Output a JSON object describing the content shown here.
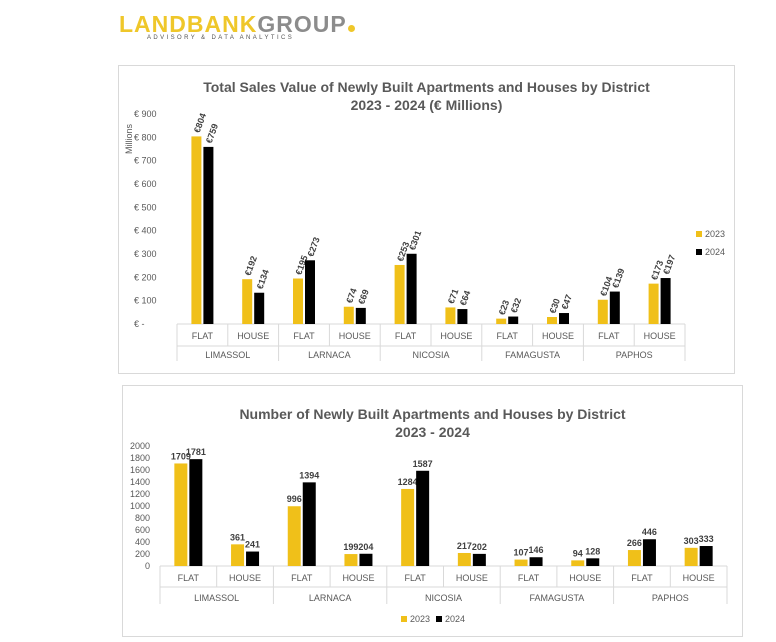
{
  "logo": {
    "part1": "LANDBANK",
    "part2": "GROUP",
    "tagline": "ADVISORY & DATA ANALYTICS"
  },
  "colors": {
    "c2023": "#f0c019",
    "c2024": "#000000",
    "axis": "#d9d9d9",
    "text": "#595959"
  },
  "chart_data": [
    {
      "type": "bar",
      "title_line1": "Total Sales Value of Newly Built Apartments and Houses by District",
      "title_line2": "2023 - 2024 (€ Millions)",
      "ylabel": "Millions",
      "ylim": [
        0,
        900
      ],
      "yticks": [
        0,
        100,
        200,
        300,
        400,
        500,
        600,
        700,
        800,
        900
      ],
      "ytick_labels": [
        "€ -",
        "€ 100",
        "€ 200",
        "€ 300",
        "€ 400",
        "€ 500",
        "€ 600",
        "€ 700",
        "€ 800",
        "€ 900"
      ],
      "groups": [
        "LIMASSOL",
        "LARNACA",
        "NICOSIA",
        "FAMAGUSTA",
        "PAPHOS"
      ],
      "subcategories": [
        "FLAT",
        "HOUSE"
      ],
      "series": [
        {
          "name": "2023",
          "values": [
            804,
            192,
            195,
            74,
            253,
            71,
            23,
            30,
            104,
            173
          ],
          "labels": [
            "€804",
            "€192",
            "€195",
            "€74",
            "€253",
            "€71",
            "€23",
            "€30",
            "€104",
            "€173"
          ]
        },
        {
          "name": "2024",
          "values": [
            759,
            134,
            273,
            69,
            301,
            64,
            32,
            47,
            139,
            197
          ],
          "labels": [
            "€759",
            "€134",
            "€273",
            "€69",
            "€301",
            "€64",
            "€32",
            "€47",
            "€139",
            "€197"
          ]
        }
      ],
      "legend": [
        "2023",
        "2024"
      ],
      "legend_position": "right"
    },
    {
      "type": "bar",
      "title_line1": "Number of Newly Built Apartments and Houses by District",
      "title_line2": "2023 - 2024",
      "ylabel": "",
      "ylim": [
        0,
        2000
      ],
      "yticks": [
        0,
        200,
        400,
        600,
        800,
        1000,
        1200,
        1400,
        1600,
        1800,
        2000
      ],
      "ytick_labels": [
        "0",
        "200",
        "400",
        "600",
        "800",
        "1000",
        "1200",
        "1400",
        "1600",
        "1800",
        "2000"
      ],
      "groups": [
        "LIMASSOL",
        "LARNACA",
        "NICOSIA",
        "FAMAGUSTA",
        "PAPHOS"
      ],
      "subcategories": [
        "FLAT",
        "HOUSE"
      ],
      "series": [
        {
          "name": "2023",
          "values": [
            1709,
            361,
            996,
            199,
            1284,
            217,
            107,
            94,
            266,
            303
          ],
          "labels": [
            "1709",
            "361",
            "996",
            "199",
            "1284",
            "217",
            "107",
            "94",
            "266",
            "303"
          ]
        },
        {
          "name": "2024",
          "values": [
            1781,
            241,
            1394,
            204,
            1587,
            202,
            146,
            128,
            446,
            333
          ],
          "labels": [
            "1781",
            "241",
            "1394",
            "204",
            "1587",
            "202",
            "146",
            "128",
            "446",
            "333"
          ]
        }
      ],
      "legend": [
        "2023",
        "2024"
      ],
      "legend_position": "bottom"
    }
  ]
}
